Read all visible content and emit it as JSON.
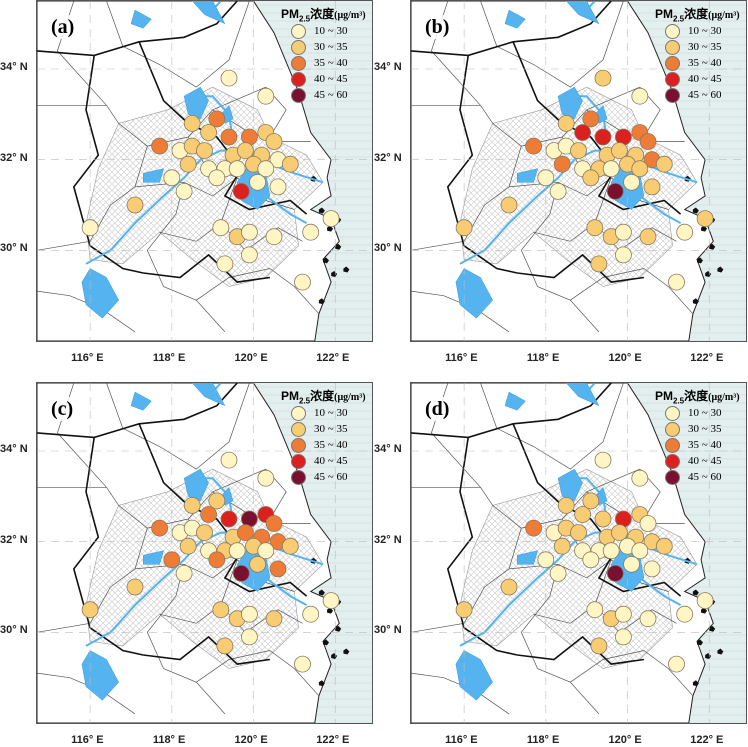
{
  "legend": {
    "title_prefix": "PM",
    "title_sub": "2.5",
    "title_cn": "浓度",
    "title_unit": "(μg/m³)",
    "items": [
      {
        "label": "10 ~ 30",
        "color": "#fff6c4"
      },
      {
        "label": "30 ~ 35",
        "color": "#f8cc73"
      },
      {
        "label": "35 ~ 40",
        "color": "#ee7c36"
      },
      {
        "label": "40 ~ 45",
        "color": "#dc2020"
      },
      {
        "label": "45 ~ 60",
        "color": "#7a1030"
      }
    ]
  },
  "axes": {
    "lat_labels": [
      "34° N",
      "32° N",
      "30° N"
    ],
    "lat_values": [
      34,
      32,
      30
    ],
    "lon_labels": [
      "116° E",
      "118° E",
      "120° E",
      "122° E"
    ],
    "lon_values": [
      116,
      118,
      120,
      122
    ],
    "lon_range": [
      114.7,
      122.9
    ],
    "lat_range": [
      28.0,
      35.5
    ]
  },
  "map_colors": {
    "sea": "#e3eeee",
    "land": "#ffffff",
    "water": "#55b4ef",
    "boundary": "#555555"
  },
  "stations": [
    [
      119.4,
      33.8
    ],
    [
      120.3,
      33.4
    ],
    [
      118.5,
      32.8
    ],
    [
      119.1,
      32.9
    ],
    [
      118.9,
      32.6
    ],
    [
      119.4,
      32.5
    ],
    [
      119.9,
      32.5
    ],
    [
      120.3,
      32.6
    ],
    [
      120.5,
      32.4
    ],
    [
      117.7,
      32.3
    ],
    [
      118.2,
      32.2
    ],
    [
      118.5,
      32.3
    ],
    [
      118.8,
      32.2
    ],
    [
      119.5,
      32.1
    ],
    [
      119.8,
      32.2
    ],
    [
      120.2,
      32.1
    ],
    [
      120.6,
      32.0
    ],
    [
      118.4,
      31.9
    ],
    [
      118.9,
      31.8
    ],
    [
      119.3,
      31.8
    ],
    [
      119.6,
      31.8
    ],
    [
      120.0,
      31.9
    ],
    [
      120.3,
      31.8
    ],
    [
      120.9,
      31.9
    ],
    [
      118.0,
      31.6
    ],
    [
      119.1,
      31.6
    ],
    [
      120.1,
      31.5
    ],
    [
      119.7,
      31.3
    ],
    [
      120.6,
      31.4
    ],
    [
      117.1,
      31.0
    ],
    [
      118.3,
      31.3
    ],
    [
      116.0,
      30.5
    ],
    [
      119.2,
      30.5
    ],
    [
      119.6,
      30.3
    ],
    [
      119.9,
      30.4
    ],
    [
      120.5,
      30.3
    ],
    [
      121.4,
      30.4
    ],
    [
      121.9,
      30.7
    ],
    [
      119.3,
      29.7
    ],
    [
      119.9,
      29.9
    ],
    [
      121.2,
      29.3
    ]
  ],
  "panels": [
    {
      "letter": "(a)",
      "levels": [
        0,
        0,
        1,
        2,
        1,
        2,
        2,
        1,
        1,
        2,
        0,
        1,
        1,
        1,
        1,
        1,
        0,
        1,
        0,
        0,
        0,
        1,
        0,
        1,
        0,
        0,
        0,
        3,
        0,
        1,
        0,
        0,
        0,
        1,
        0,
        0,
        0,
        0,
        0,
        0,
        0
      ]
    },
    {
      "letter": "(b)",
      "levels": [
        1,
        0,
        1,
        2,
        3,
        3,
        3,
        2,
        2,
        2,
        0,
        0,
        1,
        1,
        1,
        1,
        2,
        2,
        0,
        1,
        0,
        1,
        1,
        1,
        0,
        1,
        0,
        4,
        1,
        1,
        0,
        1,
        1,
        1,
        0,
        1,
        0,
        1,
        1,
        0,
        0
      ]
    },
    {
      "letter": "(c)",
      "levels": [
        0,
        0,
        1,
        1,
        2,
        3,
        4,
        3,
        2,
        2,
        0,
        0,
        1,
        1,
        2,
        2,
        2,
        1,
        0,
        1,
        0,
        1,
        0,
        1,
        2,
        2,
        1,
        4,
        2,
        1,
        0,
        1,
        1,
        1,
        0,
        1,
        0,
        0,
        1,
        0,
        0
      ]
    },
    {
      "letter": "(d)",
      "levels": [
        0,
        0,
        1,
        1,
        1,
        1,
        3,
        1,
        0,
        2,
        0,
        1,
        1,
        1,
        1,
        1,
        1,
        1,
        0,
        0,
        0,
        0,
        0,
        1,
        0,
        0,
        0,
        4,
        0,
        1,
        0,
        1,
        0,
        1,
        0,
        0,
        0,
        0,
        1,
        0,
        0
      ]
    }
  ]
}
